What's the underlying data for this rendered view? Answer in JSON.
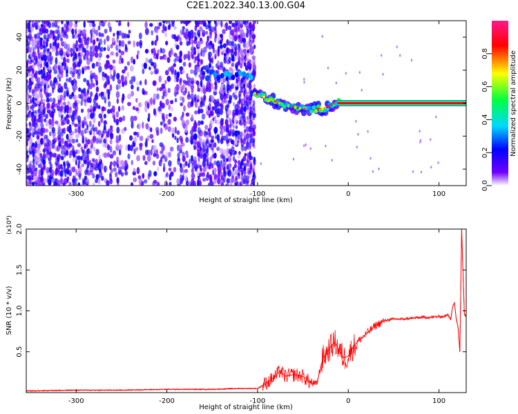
{
  "title": "C2E1.2022.340.13.00.G04",
  "chart_data": [
    {
      "type": "heatmap",
      "title": "C2E1.2022.340.13.00.G04",
      "xlabel": "Height of straight line (km)",
      "ylabel": "Frequency (Hz)",
      "xlim": [
        -355,
        130
      ],
      "ylim": [
        -50,
        50
      ],
      "x_ticks": [
        -300,
        -200,
        -100,
        0,
        100
      ],
      "y_ticks": [
        -40,
        -20,
        0,
        20,
        40
      ],
      "colorbar": {
        "label": "Normalized spectral amplitude",
        "range": [
          0,
          1
        ],
        "ticks": [
          "0.0",
          "0.2",
          "0.4",
          "0.6",
          "0.8"
        ],
        "colors": [
          "#ffffff",
          "#7000ff",
          "#0000ff",
          "#00d8ff",
          "#00ff40",
          "#ffff00",
          "#ff0000",
          "#ff1a8c"
        ]
      },
      "regions": [
        {
          "x": [
            -355,
            -103
          ],
          "pattern": "scattered noise",
          "amplitude": [
            0.0,
            0.2
          ]
        },
        {
          "x": [
            -155,
            -103
          ],
          "f_center": 17,
          "amplitude": [
            0.2,
            0.35
          ]
        },
        {
          "x": [
            -103,
            -10
          ],
          "f_center_start": 5,
          "f_center_end": 0,
          "amplitude": [
            0.3,
            0.9
          ]
        },
        {
          "x": [
            -10,
            130
          ],
          "f_center": 0,
          "amplitude": [
            0.8,
            1.0
          ]
        }
      ],
      "signal_trace": [
        {
          "x": -103,
          "f": 6
        },
        {
          "x": -85,
          "f": 2
        },
        {
          "x": -70,
          "f": -1
        },
        {
          "x": -55,
          "f": -3
        },
        {
          "x": -40,
          "f": -4
        },
        {
          "x": -25,
          "f": -3
        },
        {
          "x": -12,
          "f": 1
        },
        {
          "x": 0,
          "f": 0
        },
        {
          "x": 50,
          "f": 0
        },
        {
          "x": 100,
          "f": 0
        },
        {
          "x": 130,
          "f": 0
        }
      ]
    },
    {
      "type": "line",
      "xlabel": "Height of straight line (km)",
      "ylabel": "SNR (10 * v/v)",
      "y_multiplier": "(x10⁴)",
      "xlim": [
        -355,
        130
      ],
      "ylim": [
        0,
        2.0
      ],
      "x_ticks": [
        -300,
        -200,
        -100,
        0,
        100
      ],
      "y_ticks": [
        "0.5",
        "1.0",
        "1.5",
        "2.0"
      ],
      "series_color": "#ff0000",
      "series": [
        {
          "x": [
            -355,
            -300,
            -250,
            -200,
            -150,
            -120,
            -100,
            -90,
            -80,
            -75,
            -70,
            -60,
            -50,
            -42,
            -35,
            -28,
            -20,
            -15,
            -10,
            -5,
            0,
            5,
            10,
            20,
            30,
            40,
            50,
            60,
            70,
            80,
            90,
            100,
            105,
            110,
            113,
            115,
            117,
            119,
            121,
            123,
            125,
            128,
            130
          ],
          "y": [
            0.02,
            0.03,
            0.03,
            0.04,
            0.04,
            0.05,
            0.05,
            0.12,
            0.2,
            0.27,
            0.2,
            0.22,
            0.2,
            0.12,
            0.1,
            0.42,
            0.55,
            0.62,
            0.52,
            0.42,
            0.45,
            0.55,
            0.62,
            0.72,
            0.82,
            0.88,
            0.9,
            0.9,
            0.91,
            0.92,
            0.92,
            0.93,
            0.93,
            0.95,
            0.9,
            1.05,
            1.1,
            0.9,
            0.8,
            0.5,
            2.0,
            0.95,
            0.95
          ]
        }
      ]
    }
  ]
}
